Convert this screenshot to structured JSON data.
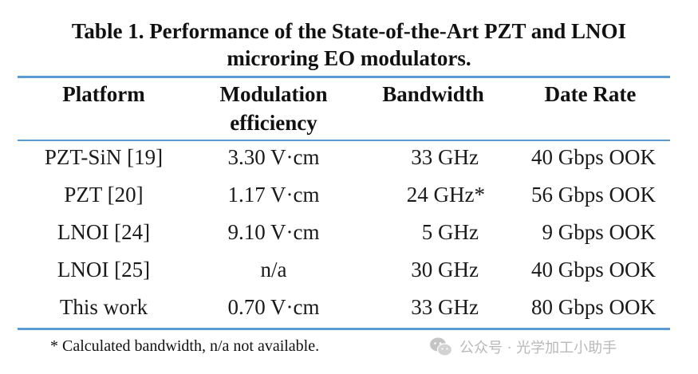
{
  "title": {
    "line1": "Table 1.  Performance of the State-of-the-Art PZT and LNOI",
    "line2": "microring EO modulators."
  },
  "table": {
    "headers": {
      "platform": "Platform",
      "modulation_line1": "Modulation",
      "modulation_line2": "efficiency",
      "bandwidth": "Bandwidth",
      "rate": "Date Rate"
    },
    "rows": [
      {
        "platform": "PZT-SiN [19]",
        "modulation": "3.30 V·cm",
        "bandwidth": "33 GHz",
        "rate": "40 Gbps OOK"
      },
      {
        "platform": "PZT [20]",
        "modulation": "1.17 V·cm",
        "bandwidth": "24 GHz*",
        "rate": "56 Gbps OOK"
      },
      {
        "platform": "LNOI [24]",
        "modulation": "9.10 V·cm",
        "bandwidth": "5 GHz",
        "rate": "9 Gbps OOK"
      },
      {
        "platform": "LNOI [25]",
        "modulation": "n/a",
        "bandwidth": "30 GHz",
        "rate": "40 Gbps OOK"
      },
      {
        "platform": "This work",
        "modulation": "0.70 V·cm",
        "bandwidth": "33 GHz",
        "rate": "80 Gbps OOK"
      }
    ]
  },
  "footnote": "* Calculated bandwidth, n/a not available.",
  "watermark": {
    "icon": "wechat-icon",
    "text": "公众号 · 光学加工小助手"
  },
  "colors": {
    "rule": "#5b9bd5",
    "text": "#1a1a1a",
    "watermark": "#b9b9b9"
  }
}
